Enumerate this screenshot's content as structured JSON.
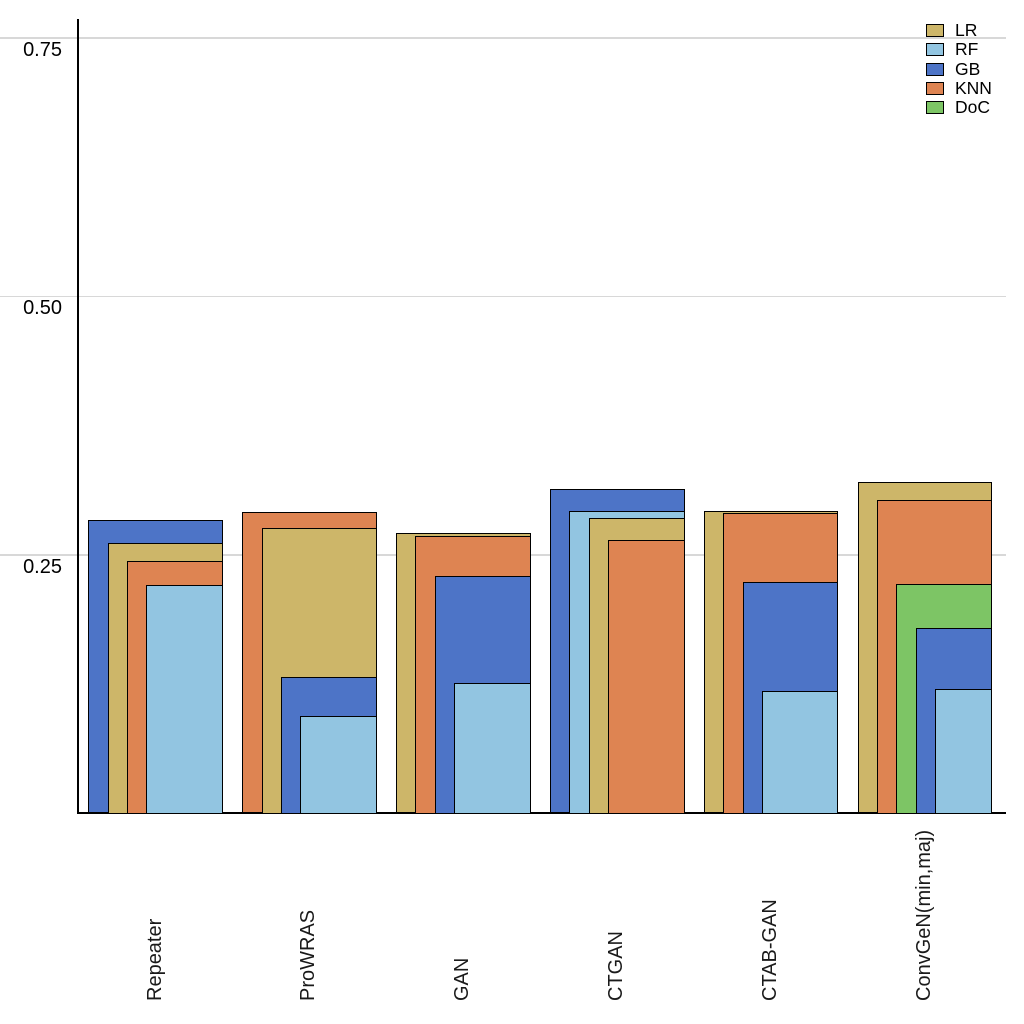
{
  "chart_data": {
    "type": "bar",
    "variant": "overlapping-layered-bars",
    "title": "",
    "xlabel": "",
    "ylabel": "",
    "categories": [
      "Repeater",
      "ProWRAS",
      "GAN",
      "CTGAN",
      "CTAB-GAN",
      "ConvGeN(min,maj)"
    ],
    "series": [
      {
        "name": "LR",
        "color": "#cdb669",
        "values": [
          0.262,
          0.276,
          0.271,
          0.286,
          0.293,
          0.321
        ]
      },
      {
        "name": "RF",
        "color": "#92c5e1",
        "values": [
          0.221,
          0.094,
          0.126,
          0.293,
          0.119,
          0.12
        ]
      },
      {
        "name": "GB",
        "color": "#4d74c7",
        "values": [
          0.284,
          0.132,
          0.23,
          0.314,
          0.224,
          0.179
        ]
      },
      {
        "name": "KNN",
        "color": "#de8452",
        "values": [
          0.244,
          0.292,
          0.268,
          0.265,
          0.291,
          0.303
        ]
      },
      {
        "name": "DoC",
        "color": "#7dc565",
        "values": [
          null,
          null,
          null,
          null,
          null,
          0.222
        ]
      }
    ],
    "yticks": [
      0.25,
      0.5,
      0.75
    ],
    "ytick_labels": [
      "0.25",
      "0.50",
      "0.75"
    ],
    "ylim": [
      0,
      0.767
    ],
    "grid": true,
    "legend_position": "top-right",
    "layering_rule": "within each category, bars are sorted by value descending; the largest value is drawn widest in back, each successive bar is narrower and right-aligned in front"
  },
  "legend": {
    "items": [
      {
        "label": "LR"
      },
      {
        "label": "RF"
      },
      {
        "label": "GB"
      },
      {
        "label": "KNN"
      },
      {
        "label": "DoC"
      }
    ]
  }
}
